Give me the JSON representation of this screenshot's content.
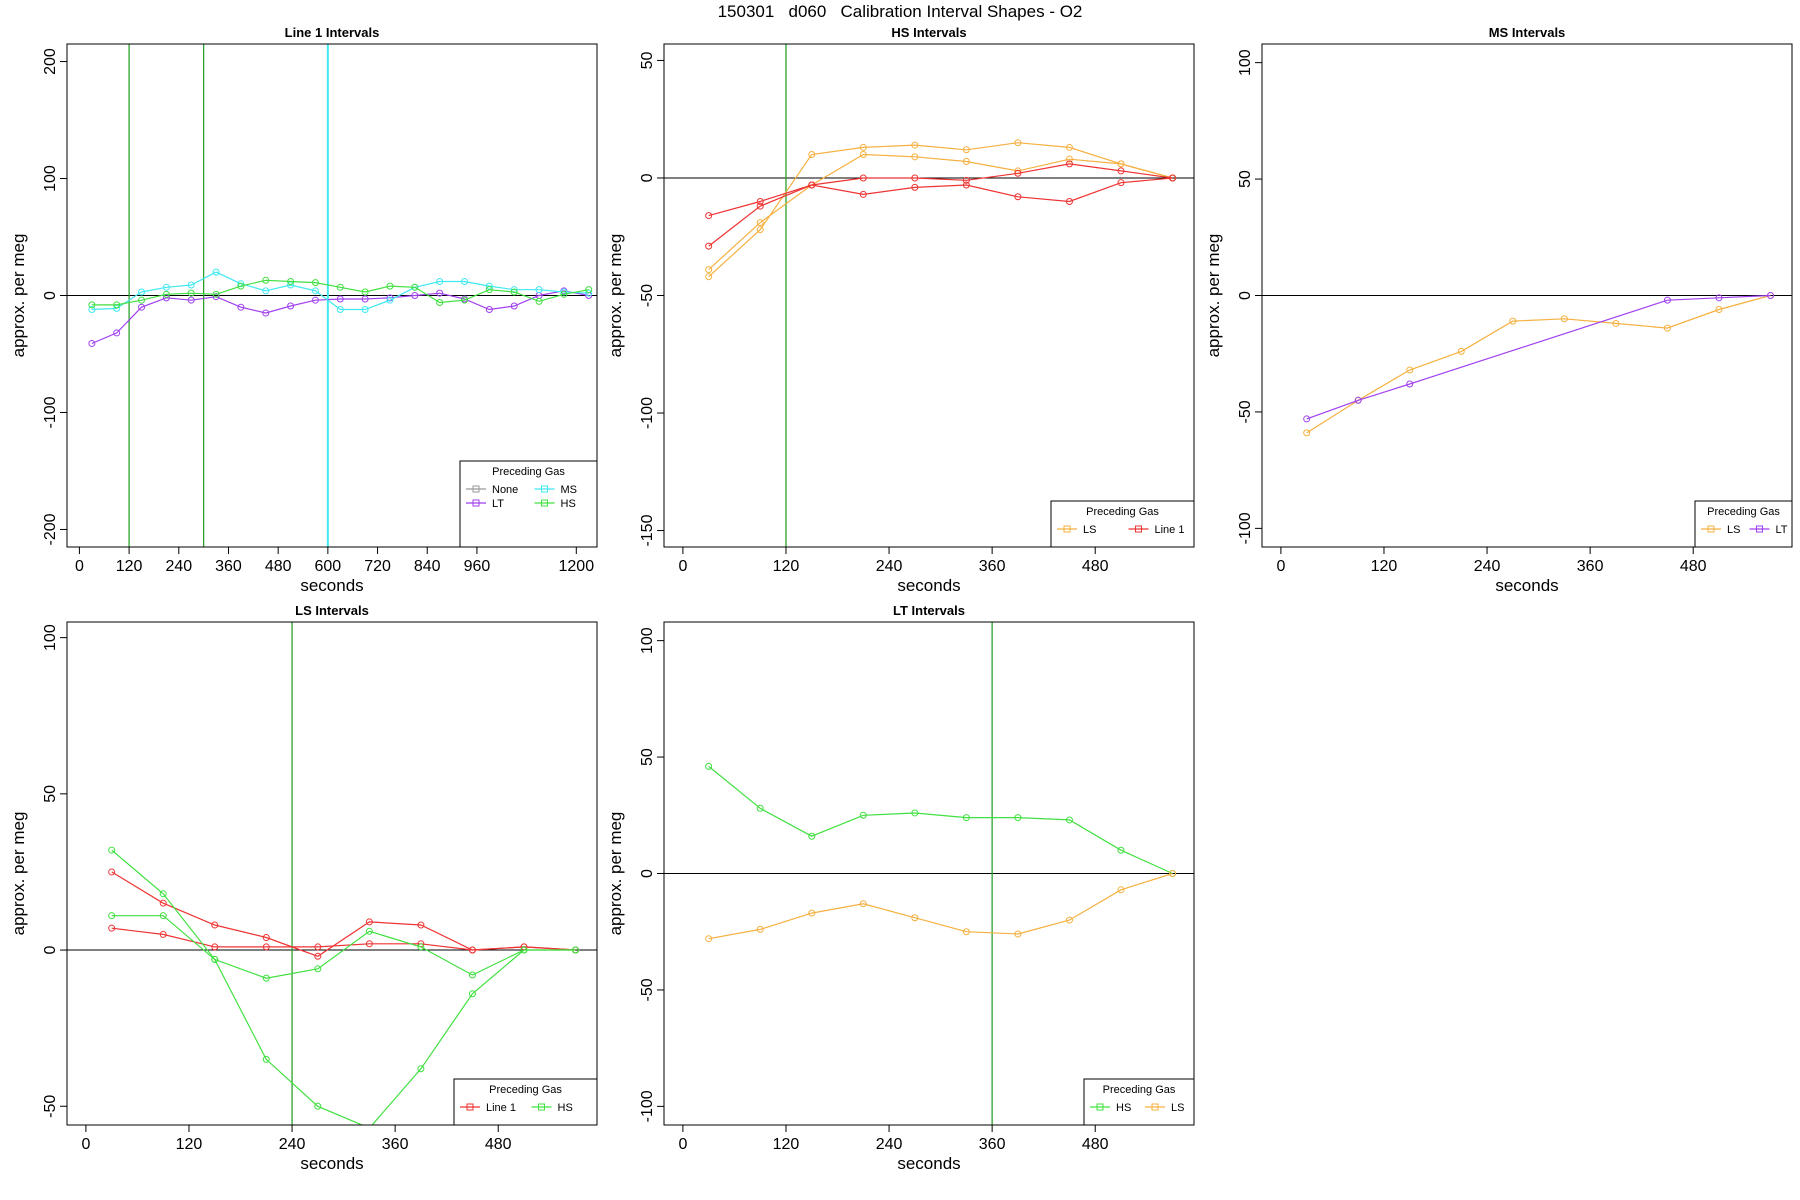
{
  "figure": {
    "title": "150301   d060   Calibration Interval Shapes - O2"
  },
  "colors": {
    "None": "#999999",
    "LT": "#a040f0",
    "MS": "#40e8f0",
    "HS": "#40e040",
    "LS": "#f5b040",
    "Line 1": "#ee3333",
    "vline_green": "#2ca02c",
    "vline_cyan": "#40e8f0"
  },
  "chart_data": [
    {
      "type": "line",
      "title": "Line 1 Intervals",
      "xlabel": "seconds",
      "ylabel": "approx. per meg",
      "xlim": [
        -30,
        1250
      ],
      "ylim": [
        -215,
        215
      ],
      "xticks": [
        0,
        120,
        240,
        360,
        480,
        600,
        720,
        840,
        960,
        1200
      ],
      "xtick_labels": [
        "0",
        "120",
        "240",
        "360",
        "480",
        "600",
        "720",
        "840",
        "960",
        "1200"
      ],
      "yticks": [
        -200,
        -100,
        0,
        100,
        200
      ],
      "ytick_labels": [
        "-200",
        "-100",
        "0",
        "100",
        "200"
      ],
      "hline": 0,
      "vlines": [
        {
          "x": 120,
          "color": "vline_green"
        },
        {
          "x": 300,
          "color": "vline_green"
        },
        {
          "x": 600,
          "color": "vline_cyan"
        }
      ],
      "legend": {
        "title": "Preceding Gas",
        "position": "bottom-right",
        "columns": 2,
        "items": [
          {
            "label": "None",
            "color": "None"
          },
          {
            "label": "MS",
            "color": "MS"
          },
          {
            "label": "LT",
            "color": "LT"
          },
          {
            "label": "HS",
            "color": "HS"
          }
        ]
      },
      "series": [
        {
          "color": "LT",
          "x": [
            30,
            90,
            150,
            210,
            270,
            330,
            390,
            450,
            510,
            570,
            630,
            690,
            750,
            810,
            870,
            930,
            990,
            1050,
            1110,
            1170,
            1230
          ],
          "y": [
            -41,
            -32,
            -10,
            -2,
            -4,
            -1,
            -10,
            -15,
            -9,
            -4,
            -3,
            -3,
            -2,
            0,
            2,
            -3,
            -12,
            -9,
            0,
            4,
            0
          ]
        },
        {
          "color": "MS",
          "x": [
            30,
            90,
            150,
            210,
            270,
            330,
            390,
            450,
            510,
            570,
            630,
            690,
            750,
            810,
            870,
            930,
            990,
            1050,
            1110,
            1170,
            1230
          ],
          "y": [
            -12,
            -11,
            3,
            7,
            9,
            20,
            10,
            4,
            9,
            4,
            -12,
            -12,
            -4,
            7,
            12,
            12,
            8,
            5,
            5,
            3,
            2
          ]
        },
        {
          "color": "HS",
          "x": [
            30,
            90,
            150,
            210,
            270,
            330,
            390,
            450,
            510,
            570,
            630,
            690,
            750,
            810,
            870,
            930,
            990,
            1050,
            1110,
            1170,
            1230
          ],
          "y": [
            -8,
            -8,
            -4,
            1,
            2,
            1,
            8,
            13,
            12,
            11,
            7,
            3,
            8,
            7,
            -6,
            -4,
            5,
            3,
            -5,
            1,
            5
          ]
        }
      ]
    },
    {
      "type": "line",
      "title": "HS Intervals",
      "xlabel": "seconds",
      "ylabel": "approx. per meg",
      "xlim": [
        -22,
        595
      ],
      "ylim": [
        -157,
        57
      ],
      "xticks": [
        0,
        120,
        240,
        360,
        480
      ],
      "xtick_labels": [
        "0",
        "120",
        "240",
        "360",
        "480"
      ],
      "yticks": [
        -150,
        -100,
        -50,
        0,
        50
      ],
      "ytick_labels": [
        "-150",
        "-100",
        "-50",
        "0",
        "50"
      ],
      "hline": 0,
      "vlines": [
        {
          "x": 120,
          "color": "vline_green"
        }
      ],
      "legend": {
        "title": "Preceding Gas",
        "position": "bottom-right",
        "columns": 2,
        "items": [
          {
            "label": "LS",
            "color": "LS"
          },
          {
            "label": "Line 1",
            "color": "Line 1"
          }
        ]
      },
      "series": [
        {
          "color": "LS",
          "x": [
            30,
            90,
            150,
            210,
            270,
            330,
            390,
            450,
            510,
            570
          ],
          "y": [
            -42,
            -22,
            10,
            13,
            14,
            12,
            15,
            13,
            6,
            0
          ]
        },
        {
          "color": "LS",
          "x": [
            30,
            90,
            150,
            210,
            270,
            330,
            390,
            450,
            510,
            570
          ],
          "y": [
            -39,
            -19,
            -3,
            10,
            9,
            7,
            3,
            8,
            6,
            0
          ]
        },
        {
          "color": "Line 1",
          "x": [
            30,
            90,
            150,
            210,
            270,
            330,
            390,
            450,
            510,
            570
          ],
          "y": [
            -16,
            -10,
            -3,
            -7,
            -4,
            -3,
            -8,
            -10,
            -2,
            0
          ]
        },
        {
          "color": "Line 1",
          "x": [
            30,
            90,
            150,
            210,
            270,
            330,
            390,
            450,
            510,
            570
          ],
          "y": [
            -29,
            -12,
            -3,
            0,
            0,
            -1,
            2,
            6,
            3,
            0
          ]
        }
      ]
    },
    {
      "type": "line",
      "title": "MS Intervals",
      "xlabel": "seconds",
      "ylabel": "approx. per meg",
      "xlim": [
        -22,
        595
      ],
      "ylim": [
        -108,
        108
      ],
      "xticks": [
        0,
        120,
        240,
        360,
        480
      ],
      "xtick_labels": [
        "0",
        "120",
        "240",
        "360",
        "480"
      ],
      "yticks": [
        -100,
        -50,
        0,
        50,
        100
      ],
      "ytick_labels": [
        "-100",
        "-50",
        "0",
        "50",
        "100"
      ],
      "hline": 0,
      "vlines": [],
      "legend": {
        "title": "Preceding Gas",
        "position": "bottom-right",
        "columns": 2,
        "items": [
          {
            "label": "LS",
            "color": "LS"
          },
          {
            "label": "LT",
            "color": "LT"
          }
        ]
      },
      "series": [
        {
          "color": "LS",
          "x": [
            30,
            90,
            150,
            210,
            270,
            330,
            390,
            450,
            510,
            570
          ],
          "y": [
            -59,
            -45,
            -32,
            -24,
            -11,
            -10,
            -12,
            -14,
            -6,
            0
          ]
        },
        {
          "color": "LT",
          "x": [
            30,
            90,
            150,
            450,
            510,
            570
          ],
          "y": [
            -53,
            -45,
            -38,
            -2,
            -1,
            0
          ]
        }
      ]
    },
    {
      "type": "line",
      "title": "LS Intervals",
      "xlabel": "seconds",
      "ylabel": "approx. per meg",
      "xlim": [
        -22,
        595
      ],
      "ylim": [
        -56,
        105
      ],
      "xticks": [
        0,
        120,
        240,
        360,
        480
      ],
      "xtick_labels": [
        "0",
        "120",
        "240",
        "360",
        "480"
      ],
      "yticks": [
        -50,
        0,
        50,
        100
      ],
      "ytick_labels": [
        "-50",
        "0",
        "50",
        "100"
      ],
      "hline": 0,
      "vlines": [
        {
          "x": 240,
          "color": "vline_green"
        }
      ],
      "legend": {
        "title": "Preceding Gas",
        "position": "bottom-right",
        "columns": 2,
        "items": [
          {
            "label": "Line 1",
            "color": "Line 1"
          },
          {
            "label": "HS",
            "color": "HS"
          }
        ]
      },
      "series": [
        {
          "color": "Line 1",
          "x": [
            30,
            90,
            150,
            210,
            270,
            330,
            390,
            450,
            510,
            570
          ],
          "y": [
            25,
            15,
            8,
            4,
            -2,
            9,
            8,
            0,
            1,
            0
          ]
        },
        {
          "color": "Line 1",
          "x": [
            30,
            90,
            150,
            210,
            270,
            330,
            390,
            450,
            510,
            570
          ],
          "y": [
            7,
            5,
            1,
            1,
            1,
            2,
            2,
            0,
            1,
            0
          ]
        },
        {
          "color": "HS",
          "x": [
            30,
            90,
            150,
            210,
            270,
            330,
            390,
            450,
            510,
            570
          ],
          "y": [
            32,
            18,
            -3,
            -35,
            -50,
            -57,
            -38,
            -14,
            0,
            0
          ]
        },
        {
          "color": "HS",
          "x": [
            30,
            90,
            150,
            210,
            270,
            330,
            390,
            450,
            510,
            570
          ],
          "y": [
            11,
            11,
            -3,
            -9,
            -6,
            6,
            1,
            -8,
            0,
            0
          ]
        }
      ]
    },
    {
      "type": "line",
      "title": "LT Intervals",
      "xlabel": "seconds",
      "ylabel": "approx. per meg",
      "xlim": [
        -22,
        595
      ],
      "ylim": [
        -108,
        108
      ],
      "xticks": [
        0,
        120,
        240,
        360,
        480
      ],
      "xtick_labels": [
        "0",
        "120",
        "240",
        "360",
        "480"
      ],
      "yticks": [
        -100,
        -50,
        0,
        50,
        100
      ],
      "ytick_labels": [
        "-100",
        "-50",
        "0",
        "50",
        "100"
      ],
      "hline": 0,
      "vlines": [
        {
          "x": 360,
          "color": "vline_green"
        }
      ],
      "legend": {
        "title": "Preceding Gas",
        "position": "bottom-right",
        "columns": 2,
        "items": [
          {
            "label": "HS",
            "color": "HS"
          },
          {
            "label": "LS",
            "color": "LS"
          }
        ]
      },
      "series": [
        {
          "color": "HS",
          "x": [
            30,
            90,
            150,
            210,
            270,
            330,
            390,
            450,
            510,
            570
          ],
          "y": [
            46,
            28,
            16,
            25,
            26,
            24,
            24,
            23,
            10,
            0
          ]
        },
        {
          "color": "LS",
          "x": [
            30,
            90,
            150,
            210,
            270,
            330,
            390,
            450,
            510,
            570
          ],
          "y": [
            -28,
            -24,
            -17,
            -13,
            -19,
            -25,
            -26,
            -20,
            -7,
            0
          ]
        }
      ]
    }
  ]
}
